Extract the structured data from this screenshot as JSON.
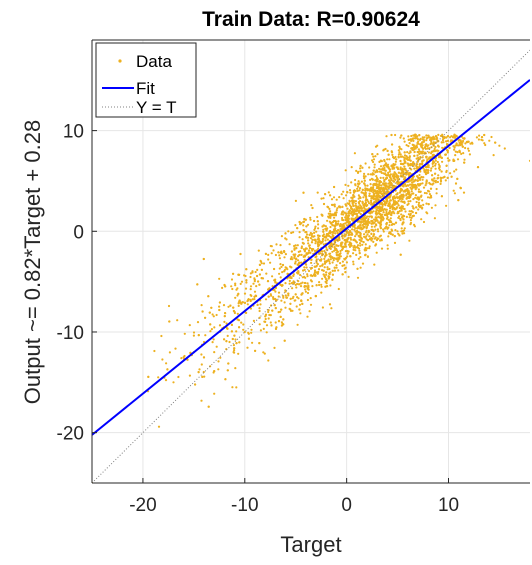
{
  "chart_data": {
    "type": "scatter",
    "title": "Train Data: R=0.90624",
    "xlabel": "Target",
    "ylabel": "Output ~= 0.82*Target + 0.28",
    "xlim": [
      -25,
      18
    ],
    "ylim": [
      -25,
      19
    ],
    "xticks": [
      -20,
      -10,
      0,
      10
    ],
    "yticks": [
      -20,
      -10,
      0,
      10
    ],
    "grid": true,
    "legend_position": "top-left",
    "colors": {
      "data": "#EDB120",
      "fit": "#0000FF",
      "identity": "#808080",
      "axes": "#262626"
    },
    "legend": [
      {
        "label": "Data",
        "kind": "point"
      },
      {
        "label": "Fit",
        "kind": "solid-line"
      },
      {
        "label": "Y = T",
        "kind": "dotted-line"
      }
    ],
    "fit": {
      "slope": 0.82,
      "intercept": 0.28
    },
    "r": 0.90624,
    "scatter_sample": [
      [
        -25,
        -25
      ],
      [
        -18.5,
        -14.5
      ],
      [
        -17,
        -15
      ],
      [
        -16,
        -12.5
      ],
      [
        -15,
        -12
      ],
      [
        -14,
        -11
      ],
      [
        -13,
        -12
      ],
      [
        -12,
        -9
      ],
      [
        -11.5,
        -11
      ],
      [
        -11,
        -8
      ],
      [
        -10,
        -10
      ],
      [
        -9,
        -6
      ],
      [
        -8,
        -9
      ],
      [
        -7,
        -5
      ],
      [
        -6,
        -6
      ],
      [
        -5,
        -3
      ],
      [
        -4,
        -6
      ],
      [
        -3,
        -2
      ],
      [
        -2,
        -3
      ],
      [
        -1,
        0
      ],
      [
        0,
        -1
      ],
      [
        1,
        2
      ],
      [
        2,
        1
      ],
      [
        3,
        4
      ],
      [
        4,
        3
      ],
      [
        5,
        5.5
      ],
      [
        6,
        4
      ],
      [
        7,
        7
      ],
      [
        8,
        6
      ],
      [
        9,
        8
      ],
      [
        10,
        7
      ],
      [
        11,
        9
      ],
      [
        12,
        8
      ],
      [
        13,
        9.5
      ],
      [
        14,
        9
      ],
      [
        15,
        8.5
      ],
      [
        18,
        7
      ]
    ]
  }
}
